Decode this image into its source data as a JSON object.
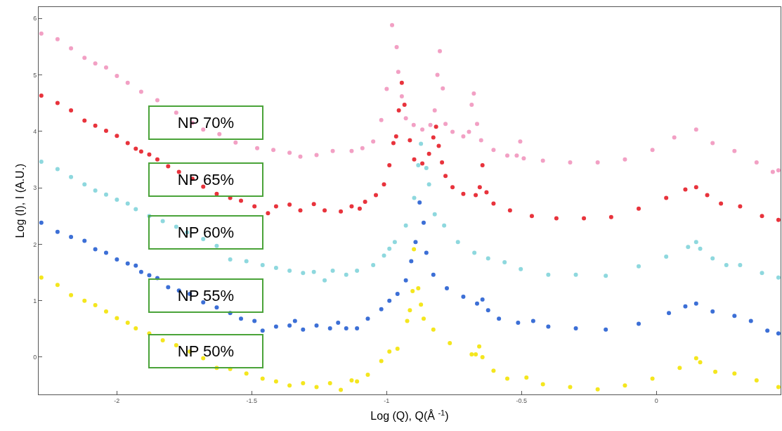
{
  "chart_data": {
    "type": "scatter",
    "xlabel": "Log (Q), Q(Å $^{-1}$)",
    "ylabel": "Log (I), I (A.U.)",
    "xlim": [
      -2.29,
      0.46
    ],
    "ylim": [
      -0.66,
      6.2
    ],
    "xticks": [
      -2,
      -1.5,
      -1,
      -0.5,
      0
    ],
    "yticks": [
      0,
      1,
      2,
      3,
      4,
      5,
      6
    ],
    "legend": false,
    "marker": "circle",
    "series": [
      {
        "name": "NP 70%",
        "color": "#f2a0c4",
        "x": [
          -2.28,
          -2.22,
          -2.17,
          -2.12,
          -2.08,
          -2.04,
          -2.0,
          -1.96,
          -1.91,
          -1.85,
          -1.78,
          -1.72,
          -1.68,
          -1.62,
          -1.56,
          -1.48,
          -1.42,
          -1.36,
          -1.32,
          -1.26,
          -1.2,
          -1.13,
          -1.09,
          -1.05,
          -1.02,
          -1.0,
          -0.98,
          -0.963,
          -0.957,
          -0.944,
          -0.929,
          -0.9,
          -0.868,
          -0.838,
          -0.822,
          -0.812,
          -0.803,
          -0.792,
          -0.782,
          -0.756,
          -0.716,
          -0.695,
          -0.685,
          -0.677,
          -0.665,
          -0.65,
          -0.604,
          -0.553,
          -0.518,
          -0.505,
          -0.492,
          -0.421,
          -0.32,
          -0.218,
          -0.117,
          -0.015,
          0.066,
          0.147,
          0.208,
          0.289,
          0.371,
          0.431,
          0.452
        ],
        "values": [
          5.73,
          5.63,
          5.47,
          5.3,
          5.2,
          5.13,
          4.98,
          4.86,
          4.7,
          4.55,
          4.33,
          4.15,
          4.03,
          3.95,
          3.8,
          3.7,
          3.67,
          3.62,
          3.55,
          3.58,
          3.65,
          3.65,
          3.7,
          3.82,
          4.2,
          4.75,
          5.88,
          5.49,
          5.05,
          4.62,
          4.23,
          4.11,
          4.03,
          4.11,
          4.37,
          5.0,
          5.42,
          4.76,
          4.13,
          3.99,
          3.91,
          3.99,
          4.47,
          4.67,
          4.13,
          3.84,
          3.67,
          3.57,
          3.57,
          3.82,
          3.52,
          3.48,
          3.45,
          3.45,
          3.5,
          3.67,
          3.89,
          4.03,
          3.79,
          3.65,
          3.45,
          3.28,
          3.31
        ]
      },
      {
        "name": "NP 65%",
        "color": "#e8333c",
        "x": [
          -2.28,
          -2.22,
          -2.17,
          -2.12,
          -2.08,
          -2.04,
          -2.0,
          -1.96,
          -1.93,
          -1.91,
          -1.88,
          -1.85,
          -1.81,
          -1.77,
          -1.72,
          -1.68,
          -1.63,
          -1.58,
          -1.54,
          -1.49,
          -1.44,
          -1.41,
          -1.36,
          -1.32,
          -1.27,
          -1.23,
          -1.17,
          -1.13,
          -1.1,
          -1.08,
          -1.04,
          -1.01,
          -0.99,
          -0.975,
          -0.965,
          -0.955,
          -0.944,
          -0.934,
          -0.914,
          -0.898,
          -0.868,
          -0.843,
          -0.827,
          -0.817,
          -0.807,
          -0.795,
          -0.782,
          -0.756,
          -0.716,
          -0.67,
          -0.655,
          -0.645,
          -0.63,
          -0.604,
          -0.543,
          -0.462,
          -0.371,
          -0.269,
          -0.168,
          -0.066,
          0.036,
          0.107,
          0.147,
          0.188,
          0.239,
          0.31,
          0.391,
          0.452
        ],
        "values": [
          4.63,
          4.5,
          4.37,
          4.19,
          4.1,
          4.01,
          3.92,
          3.79,
          3.69,
          3.64,
          3.59,
          3.5,
          3.38,
          3.28,
          3.16,
          3.02,
          2.89,
          2.82,
          2.77,
          2.67,
          2.55,
          2.67,
          2.7,
          2.6,
          2.71,
          2.6,
          2.58,
          2.67,
          2.63,
          2.75,
          2.87,
          3.06,
          3.4,
          3.79,
          3.91,
          4.37,
          4.86,
          4.47,
          3.84,
          3.5,
          3.43,
          3.6,
          3.89,
          4.08,
          3.74,
          3.45,
          3.21,
          3.01,
          2.89,
          2.87,
          3.01,
          3.4,
          2.92,
          2.72,
          2.6,
          2.5,
          2.46,
          2.46,
          2.48,
          2.63,
          2.82,
          2.97,
          3.01,
          2.87,
          2.72,
          2.67,
          2.5,
          2.43
        ]
      },
      {
        "name": "NP 60%",
        "color": "#8ed8de",
        "x": [
          -2.28,
          -2.22,
          -2.17,
          -2.12,
          -2.08,
          -2.04,
          -2.0,
          -1.96,
          -1.93,
          -1.88,
          -1.83,
          -1.78,
          -1.74,
          -1.68,
          -1.63,
          -1.58,
          -1.52,
          -1.46,
          -1.41,
          -1.36,
          -1.31,
          -1.27,
          -1.23,
          -1.2,
          -1.15,
          -1.11,
          -1.05,
          -1.01,
          -0.99,
          -0.97,
          -0.929,
          -0.898,
          -0.883,
          -0.873,
          -0.853,
          -0.843,
          -0.822,
          -0.787,
          -0.736,
          -0.675,
          -0.624,
          -0.563,
          -0.503,
          -0.401,
          -0.299,
          -0.188,
          -0.066,
          0.036,
          0.117,
          0.147,
          0.162,
          0.208,
          0.259,
          0.31,
          0.391,
          0.452
        ],
        "values": [
          3.46,
          3.33,
          3.19,
          3.06,
          2.95,
          2.88,
          2.79,
          2.72,
          2.62,
          2.5,
          2.41,
          2.31,
          2.21,
          2.09,
          1.97,
          1.73,
          1.7,
          1.63,
          1.58,
          1.53,
          1.49,
          1.51,
          1.36,
          1.53,
          1.46,
          1.53,
          1.63,
          1.8,
          1.92,
          2.04,
          2.33,
          2.82,
          3.4,
          3.78,
          3.35,
          3.06,
          2.53,
          2.33,
          2.04,
          1.85,
          1.75,
          1.68,
          1.56,
          1.46,
          1.46,
          1.44,
          1.61,
          1.78,
          1.95,
          2.04,
          1.92,
          1.75,
          1.63,
          1.63,
          1.49,
          1.41
        ]
      },
      {
        "name": "NP 55%",
        "color": "#3c6fd6",
        "x": [
          -2.28,
          -2.22,
          -2.17,
          -2.12,
          -2.08,
          -2.04,
          -2.0,
          -1.96,
          -1.93,
          -1.91,
          -1.88,
          -1.85,
          -1.81,
          -1.77,
          -1.73,
          -1.68,
          -1.63,
          -1.58,
          -1.54,
          -1.49,
          -1.46,
          -1.41,
          -1.36,
          -1.34,
          -1.31,
          -1.26,
          -1.21,
          -1.18,
          -1.15,
          -1.11,
          -1.07,
          -1.02,
          -0.99,
          -0.96,
          -0.929,
          -0.909,
          -0.893,
          -0.878,
          -0.863,
          -0.853,
          -0.827,
          -0.777,
          -0.716,
          -0.665,
          -0.645,
          -0.624,
          -0.584,
          -0.513,
          -0.457,
          -0.401,
          -0.299,
          -0.188,
          -0.066,
          0.046,
          0.107,
          0.147,
          0.208,
          0.289,
          0.35,
          0.411,
          0.452
        ],
        "values": [
          2.38,
          2.22,
          2.13,
          2.06,
          1.91,
          1.85,
          1.73,
          1.66,
          1.62,
          1.51,
          1.45,
          1.4,
          1.24,
          1.18,
          1.12,
          0.97,
          0.88,
          0.78,
          0.68,
          0.64,
          0.47,
          0.54,
          0.56,
          0.64,
          0.49,
          0.56,
          0.51,
          0.61,
          0.51,
          0.51,
          0.68,
          0.85,
          1.0,
          1.12,
          1.36,
          1.7,
          2.04,
          2.74,
          2.38,
          1.85,
          1.46,
          1.22,
          1.07,
          0.95,
          1.02,
          0.83,
          0.68,
          0.61,
          0.64,
          0.54,
          0.51,
          0.49,
          0.59,
          0.78,
          0.9,
          0.95,
          0.81,
          0.73,
          0.64,
          0.47,
          0.42
        ]
      },
      {
        "name": "NP 50%",
        "color": "#f4e61e",
        "x": [
          -2.28,
          -2.22,
          -2.17,
          -2.12,
          -2.08,
          -2.04,
          -2.0,
          -1.96,
          -1.93,
          -1.88,
          -1.83,
          -1.78,
          -1.73,
          -1.68,
          -1.63,
          -1.58,
          -1.52,
          -1.46,
          -1.41,
          -1.36,
          -1.31,
          -1.26,
          -1.21,
          -1.17,
          -1.13,
          -1.11,
          -1.07,
          -1.02,
          -0.99,
          -0.96,
          -0.924,
          -0.914,
          -0.904,
          -0.899,
          -0.883,
          -0.873,
          -0.863,
          -0.827,
          -0.766,
          -0.685,
          -0.67,
          -0.657,
          -0.645,
          -0.604,
          -0.553,
          -0.482,
          -0.421,
          -0.32,
          -0.218,
          -0.117,
          -0.015,
          0.086,
          0.147,
          0.162,
          0.218,
          0.289,
          0.371,
          0.452
        ],
        "values": [
          1.41,
          1.28,
          1.1,
          1.0,
          0.92,
          0.81,
          0.69,
          0.61,
          0.51,
          0.42,
          0.3,
          0.21,
          0.1,
          -0.02,
          -0.19,
          -0.21,
          -0.29,
          -0.38,
          -0.43,
          -0.5,
          -0.46,
          -0.53,
          -0.46,
          -0.58,
          -0.41,
          -0.43,
          -0.31,
          -0.07,
          0.1,
          0.15,
          0.64,
          0.83,
          1.17,
          1.91,
          1.22,
          0.93,
          0.68,
          0.49,
          0.25,
          0.05,
          0.05,
          0.19,
          0,
          -0.24,
          -0.38,
          -0.36,
          -0.48,
          -0.53,
          -0.57,
          -0.5,
          -0.38,
          -0.19,
          -0.02,
          -0.09,
          -0.26,
          -0.29,
          -0.41,
          -0.53
        ]
      }
    ]
  }
}
